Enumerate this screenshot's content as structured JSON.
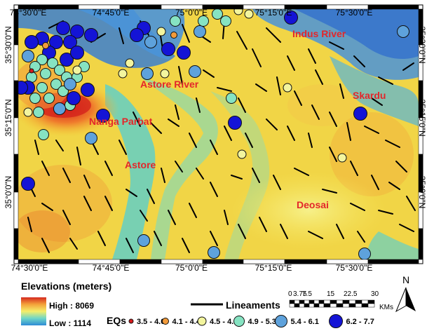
{
  "map": {
    "top_ticks": [
      "74°30'0\"E",
      "74°45'0\"E",
      "75°0'0\"E",
      "75°15'0\"E",
      "75°30'0\"E"
    ],
    "bottom_ticks": [
      "74°30'0\"E",
      "74°45'0\"E",
      "75°0'0\"E",
      "75°15'0\"E",
      "75°30'0\"E"
    ],
    "left_ticks": [
      "35°30'0\"N",
      "35°15'0\"N",
      "35°0'0\"N"
    ],
    "right_ticks": [
      "35°30'0\"N",
      "35°15'0\"N",
      "35°0'0\"N"
    ],
    "places": {
      "indus": "Indus River",
      "astore_river": "Astore River",
      "skardu": "Skardu",
      "nanga": "Nanga Parbat",
      "astore": "Astore",
      "deosai": "Deosai"
    }
  },
  "legend": {
    "elev_title": "Elevations (meters)",
    "elev_high": "High : 8069",
    "elev_low": "Low : 1114",
    "eq_title": "EQs",
    "eq_classes": [
      {
        "label": "3.5 - 4.0",
        "color": "#d7191c"
      },
      {
        "label": "4.1 - 4.4",
        "color": "#f29b3b"
      },
      {
        "label": "4.5 - 4.8",
        "color": "#f3f59e"
      },
      {
        "label": "4.9 - 5.3",
        "color": "#86e3c2"
      },
      {
        "label": "5.4 - 6.1",
        "color": "#5ea2dc"
      },
      {
        "label": "6.2 - 7.7",
        "color": "#1414d6"
      }
    ],
    "lineaments": "Lineaments",
    "scale_ticks": [
      "0",
      "3.75",
      "7.5",
      "15",
      "22.5",
      "30"
    ],
    "scale_unit": "KMs",
    "north": "N"
  },
  "colors": {
    "high": "#d52a1f",
    "low": "#2d8bd6",
    "lineament": "#000000"
  }
}
